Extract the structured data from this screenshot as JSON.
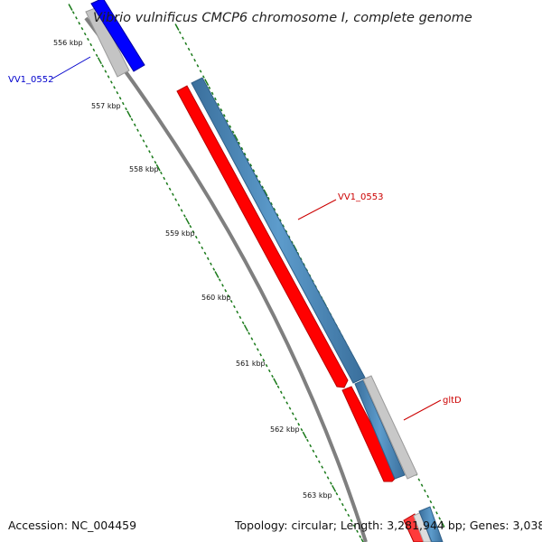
{
  "title": "Vibrio vulnificus CMCP6 chromosome I, complete genome",
  "footer": {
    "accession": "Accession: NC_004459",
    "topology": "Topology: circular; Length: 3,281,944 bp; Genes: 3,038"
  },
  "ticks": [
    "556 kbp",
    "557 kbp",
    "558 kbp",
    "559 kbp",
    "560 kbp",
    "561 kbp",
    "562 kbp",
    "563 kbp"
  ],
  "genes": {
    "vv1_0552": {
      "label": "VV1_0552",
      "color": "#0000cc",
      "strand": "forward"
    },
    "vv1_0553": {
      "label": "VV1_0553",
      "color": "#cc0000",
      "strand": "forward"
    },
    "gltD": {
      "label": "gltD",
      "color": "#cc0000",
      "strand": "forward"
    }
  },
  "colors": {
    "cds_forward": "#ff0000",
    "gene_track": "#4f88b8",
    "blue_gene": "#0000ff",
    "grey_track": "#bbbbbb",
    "backbone": "#888888",
    "ticks": "#1a7a1a"
  }
}
